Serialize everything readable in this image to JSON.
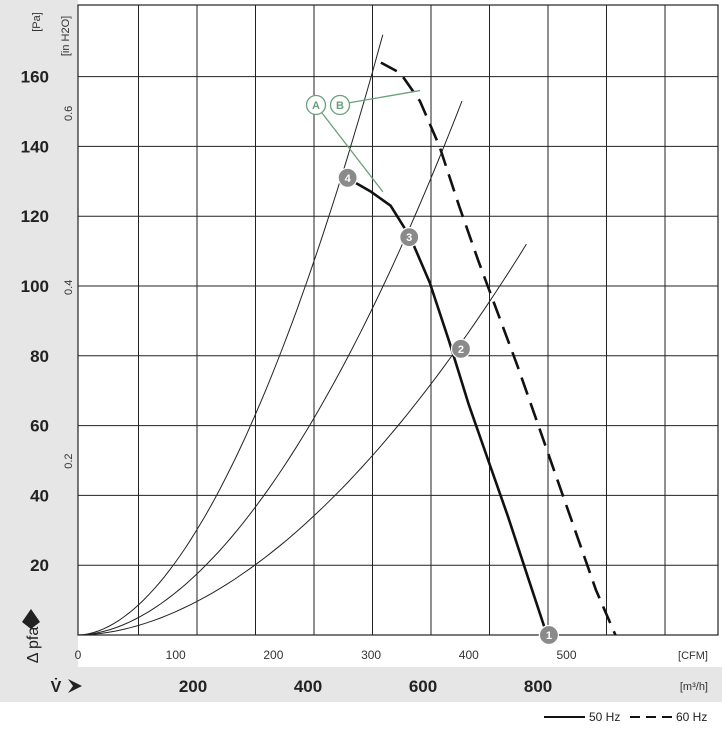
{
  "chart_data": {
    "type": "line",
    "title": "",
    "units": {
      "y_primary": "[Pa]",
      "y_secondary": "[in H2O]",
      "x_primary": "[CFM]",
      "x_secondary": "[m³/h]"
    },
    "y_axis_symbol": "Δ pfa",
    "x_axis_symbol": "V̇",
    "ylim": [
      0,
      175
    ],
    "xlim_cfm": [
      0,
      645
    ],
    "y_ticks_pa": [
      20,
      40,
      60,
      80,
      100,
      120,
      140,
      160
    ],
    "y_ticks_inh2o": [
      0.2,
      0.4,
      0.6
    ],
    "x_ticks_cfm": [
      0,
      100,
      200,
      300,
      400,
      500
    ],
    "x_ticks_m3h": [
      200,
      400,
      600,
      800
    ],
    "grid": true,
    "legend": {
      "placement": "bottom-right"
    },
    "series": [
      {
        "name": "50 Hz",
        "style": "solid",
        "x_cfm": [
          275,
          300,
          320,
          340,
          360,
          380,
          400,
          420,
          440,
          460,
          480
        ],
        "y_pa": [
          131,
          127,
          123,
          114,
          101,
          84,
          66,
          50,
          34,
          17,
          0
        ]
      },
      {
        "name": "60 Hz",
        "style": "dashed",
        "x_cfm": [
          310,
          330,
          350,
          370,
          390,
          410,
          430,
          450,
          470,
          490,
          510,
          530,
          550
        ],
        "y_pa": [
          164,
          161,
          153,
          140,
          123,
          107,
          92,
          77,
          61,
          45,
          29,
          13,
          0
        ]
      }
    ],
    "system_curves": [
      {
        "label": "",
        "x_cfm": [
          0,
          312
        ],
        "y_pa": [
          0,
          172
        ],
        "exponent": 1.85
      },
      {
        "label": "",
        "x_cfm": [
          0,
          393
        ],
        "y_pa": [
          0,
          153
        ],
        "exponent": 1.85
      },
      {
        "label": "",
        "x_cfm": [
          0,
          459
        ],
        "y_pa": [
          0,
          112
        ],
        "exponent": 1.85
      }
    ],
    "operating_points": [
      {
        "label": "1",
        "x_cfm": 482,
        "y_pa": 0
      },
      {
        "label": "2",
        "x_cfm": 392,
        "y_pa": 82
      },
      {
        "label": "3",
        "x_cfm": 339,
        "y_pa": 114
      },
      {
        "label": "4",
        "x_cfm": 276,
        "y_pa": 131
      }
    ],
    "callouts": [
      {
        "label": "A",
        "target_x_cfm": 312,
        "target_y_pa": 127
      },
      {
        "label": "B",
        "target_x_cfm": 350,
        "target_y_pa": 156
      }
    ],
    "legend_entries": [
      "50 Hz",
      "60 Hz"
    ]
  }
}
